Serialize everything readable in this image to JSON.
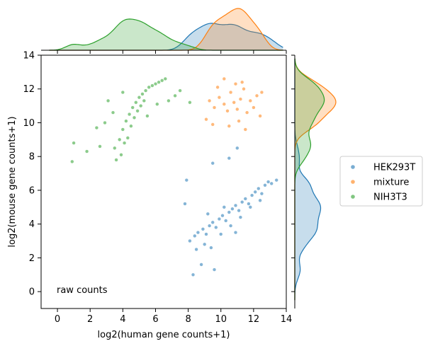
{
  "chart_data": {
    "type": "scatter",
    "xlabel": "log2(human gene counts+1)",
    "ylabel": "log2(mouse gene counts+1)",
    "xlim": [
      -1,
      14
    ],
    "ylim": [
      -1,
      14
    ],
    "xticks": [
      0,
      2,
      4,
      6,
      8,
      10,
      12,
      14
    ],
    "yticks": [
      0,
      2,
      4,
      6,
      8,
      10,
      12,
      14
    ],
    "annotation": "raw counts",
    "grid": false,
    "legend_placement": "right",
    "marginals": "kde densities on top (x) and right (y) axes",
    "series": [
      {
        "name": "HEK293T",
        "color": "#1f77b4",
        "points": [
          [
            8.1,
            3.0
          ],
          [
            8.4,
            3.3
          ],
          [
            8.6,
            3.5
          ],
          [
            8.9,
            3.7
          ],
          [
            9.1,
            3.4
          ],
          [
            9.3,
            3.9
          ],
          [
            9.5,
            4.1
          ],
          [
            9.7,
            3.8
          ],
          [
            9.9,
            4.3
          ],
          [
            10.1,
            4.5
          ],
          [
            10.3,
            4.2
          ],
          [
            10.5,
            4.7
          ],
          [
            10.7,
            4.9
          ],
          [
            10.9,
            5.1
          ],
          [
            11.1,
            4.8
          ],
          [
            11.3,
            5.3
          ],
          [
            11.5,
            5.5
          ],
          [
            11.7,
            5.2
          ],
          [
            11.9,
            5.7
          ],
          [
            12.1,
            5.9
          ],
          [
            12.3,
            6.1
          ],
          [
            12.5,
            5.8
          ],
          [
            12.7,
            6.3
          ],
          [
            12.9,
            6.5
          ],
          [
            13.1,
            6.4
          ],
          [
            13.4,
            6.6
          ],
          [
            8.5,
            2.5
          ],
          [
            9.0,
            2.8
          ],
          [
            9.4,
            2.6
          ],
          [
            10.0,
            3.4
          ],
          [
            10.6,
            3.9
          ],
          [
            11.2,
            4.4
          ],
          [
            11.8,
            5.0
          ],
          [
            12.4,
            5.4
          ],
          [
            9.2,
            4.6
          ],
          [
            10.2,
            5.0
          ],
          [
            7.9,
            6.6
          ],
          [
            9.5,
            7.6
          ],
          [
            10.5,
            7.9
          ],
          [
            11.0,
            8.5
          ],
          [
            8.8,
            1.6
          ],
          [
            9.6,
            1.3
          ],
          [
            8.3,
            1.0
          ],
          [
            7.8,
            5.2
          ],
          [
            10.9,
            3.5
          ]
        ]
      },
      {
        "name": "mixture",
        "color": "#ff7f0e",
        "points": [
          [
            9.3,
            11.3
          ],
          [
            9.6,
            10.9
          ],
          [
            9.9,
            11.5
          ],
          [
            10.2,
            11.1
          ],
          [
            10.4,
            10.7
          ],
          [
            10.6,
            11.8
          ],
          [
            10.8,
            11.2
          ],
          [
            11.0,
            10.8
          ],
          [
            11.2,
            11.4
          ],
          [
            11.4,
            12.0
          ],
          [
            11.6,
            10.6
          ],
          [
            11.8,
            11.3
          ],
          [
            12.0,
            10.9
          ],
          [
            12.2,
            11.6
          ],
          [
            10.5,
            9.8
          ],
          [
            11.1,
            10.1
          ],
          [
            9.8,
            12.1
          ],
          [
            10.9,
            12.3
          ],
          [
            11.5,
            9.6
          ],
          [
            9.1,
            10.2
          ],
          [
            12.4,
            10.4
          ],
          [
            10.2,
            12.6
          ],
          [
            11.3,
            12.4
          ],
          [
            9.5,
            9.9
          ],
          [
            12.5,
            11.8
          ]
        ]
      },
      {
        "name": "NIH3T3",
        "color": "#2ca02c",
        "points": [
          [
            3.8,
            9.0
          ],
          [
            4.0,
            9.6
          ],
          [
            4.2,
            10.1
          ],
          [
            4.4,
            10.5
          ],
          [
            4.6,
            10.9
          ],
          [
            4.8,
            11.2
          ],
          [
            5.0,
            11.5
          ],
          [
            5.2,
            11.7
          ],
          [
            5.4,
            11.9
          ],
          [
            5.6,
            12.1
          ],
          [
            5.8,
            12.2
          ],
          [
            6.0,
            12.3
          ],
          [
            6.2,
            12.4
          ],
          [
            6.4,
            12.5
          ],
          [
            6.6,
            12.6
          ],
          [
            4.3,
            9.1
          ],
          [
            4.5,
            9.8
          ],
          [
            4.7,
            10.3
          ],
          [
            4.9,
            10.7
          ],
          [
            5.1,
            11.0
          ],
          [
            5.3,
            11.3
          ],
          [
            3.5,
            8.5
          ],
          [
            3.9,
            8.1
          ],
          [
            4.1,
            8.8
          ],
          [
            2.4,
            9.7
          ],
          [
            2.9,
            10.0
          ],
          [
            3.4,
            10.6
          ],
          [
            3.1,
            11.3
          ],
          [
            4.0,
            11.8
          ],
          [
            6.8,
            11.3
          ],
          [
            7.2,
            11.6
          ],
          [
            7.5,
            11.9
          ],
          [
            8.1,
            11.2
          ],
          [
            1.0,
            8.8
          ],
          [
            0.9,
            7.7
          ],
          [
            1.8,
            8.3
          ],
          [
            2.6,
            8.6
          ],
          [
            3.6,
            7.8
          ],
          [
            5.5,
            10.4
          ],
          [
            6.1,
            11.1
          ]
        ]
      }
    ]
  }
}
